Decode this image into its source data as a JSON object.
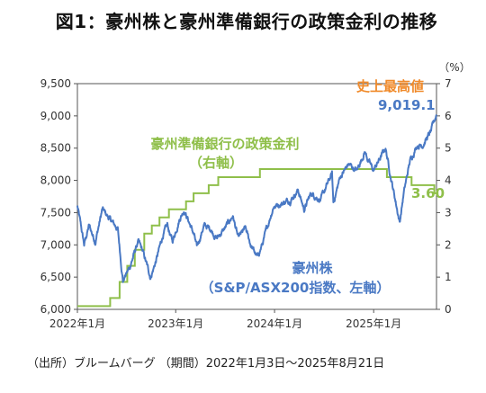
{
  "title": "図1：豪州株と豪州準備銀行の政策金利の推移",
  "source_note": "（出所）ブルームバーグ （期間）2022年1月3日〜2025年8月21日",
  "chart_data": {
    "type": "line",
    "title": "図1：豪州株と豪州準備銀行の政策金利の推移",
    "y_left": {
      "ylim": [
        6000,
        9500
      ],
      "ticks": [
        "6,000",
        "6,500",
        "7,000",
        "7,500",
        "8,000",
        "8,500",
        "9,000",
        "9,500"
      ],
      "tick_values": [
        6000,
        6500,
        7000,
        7500,
        8000,
        8500,
        9000,
        9500
      ]
    },
    "y_right": {
      "unit": "（%）",
      "ylim": [
        0,
        7
      ],
      "ticks": [
        "0",
        "1",
        "2",
        "3",
        "4",
        "5",
        "6",
        "7"
      ],
      "tick_values": [
        0,
        1,
        2,
        3,
        4,
        5,
        6,
        7
      ]
    },
    "x_ticks": [
      "2022年1月",
      "2023年1月",
      "2024年1月",
      "2025年1月"
    ],
    "x_range": [
      "2022-01-03",
      "2025-08-21"
    ],
    "colors": {
      "stock": "#4a79c4",
      "rate": "#8fbf4a",
      "record": "#f08a2a"
    },
    "labels": {
      "rate_label_1": "豪州準備銀行の政策金利",
      "rate_label_2": "（右軸）",
      "stock_label_1": "豪州株",
      "stock_label_2": "（S&P/ASX200指数、左軸）",
      "record_high": "史上最高値",
      "last_stock": "9,019.1",
      "last_rate": "3.60"
    },
    "series": [
      {
        "name": "豪州準備銀行の政策金利",
        "axis": "right",
        "points": [
          [
            "2022-01-03",
            0.1
          ],
          [
            "2022-05-04",
            0.35
          ],
          [
            "2022-06-08",
            0.85
          ],
          [
            "2022-07-06",
            1.35
          ],
          [
            "2022-08-03",
            1.85
          ],
          [
            "2022-09-07",
            2.35
          ],
          [
            "2022-10-05",
            2.6
          ],
          [
            "2022-11-02",
            2.85
          ],
          [
            "2022-12-07",
            3.1
          ],
          [
            "2023-02-08",
            3.35
          ],
          [
            "2023-03-08",
            3.6
          ],
          [
            "2023-05-03",
            3.85
          ],
          [
            "2023-06-07",
            4.1
          ],
          [
            "2023-11-08",
            4.35
          ],
          [
            "2025-02-19",
            4.1
          ],
          [
            "2025-05-21",
            3.85
          ],
          [
            "2025-08-13",
            3.6
          ],
          [
            "2025-08-21",
            3.6
          ]
        ]
      },
      {
        "name": "豪州株",
        "axis": "left",
        "points": [
          [
            "2022-01-03",
            7600
          ],
          [
            "2022-01-28",
            7000
          ],
          [
            "2022-02-15",
            7300
          ],
          [
            "2022-03-10",
            7050
          ],
          [
            "2022-04-05",
            7550
          ],
          [
            "2022-05-02",
            7400
          ],
          [
            "2022-06-01",
            7250
          ],
          [
            "2022-06-20",
            6450
          ],
          [
            "2022-07-15",
            6650
          ],
          [
            "2022-08-15",
            7050
          ],
          [
            "2022-09-01",
            6900
          ],
          [
            "2022-09-30",
            6500
          ],
          [
            "2022-10-20",
            6750
          ],
          [
            "2022-11-15",
            7150
          ],
          [
            "2022-12-01",
            7300
          ],
          [
            "2022-12-20",
            7050
          ],
          [
            "2023-01-15",
            7400
          ],
          [
            "2023-02-01",
            7550
          ],
          [
            "2023-03-10",
            7150
          ],
          [
            "2023-03-20",
            6950
          ],
          [
            "2023-04-15",
            7300
          ],
          [
            "2023-05-10",
            7250
          ],
          [
            "2023-06-01",
            7100
          ],
          [
            "2023-07-01",
            7250
          ],
          [
            "2023-07-31",
            7450
          ],
          [
            "2023-08-20",
            7100
          ],
          [
            "2023-09-15",
            7250
          ],
          [
            "2023-10-05",
            7000
          ],
          [
            "2023-10-30",
            6800
          ],
          [
            "2023-11-20",
            7050
          ],
          [
            "2023-12-28",
            7600
          ],
          [
            "2024-01-31",
            7650
          ],
          [
            "2024-02-28",
            7700
          ],
          [
            "2024-03-28",
            7850
          ],
          [
            "2024-04-19",
            7550
          ],
          [
            "2024-05-15",
            7800
          ],
          [
            "2024-06-20",
            7700
          ],
          [
            "2024-07-31",
            8100
          ],
          [
            "2024-08-05",
            7650
          ],
          [
            "2024-08-30",
            8050
          ],
          [
            "2024-09-30",
            8250
          ],
          [
            "2024-10-31",
            8150
          ],
          [
            "2024-11-29",
            8450
          ],
          [
            "2024-12-13",
            8300
          ],
          [
            "2024-12-31",
            8150
          ],
          [
            "2025-02-14",
            8500
          ],
          [
            "2025-03-10",
            7950
          ],
          [
            "2025-04-07",
            7350
          ],
          [
            "2025-04-22",
            7800
          ],
          [
            "2025-05-15",
            8300
          ],
          [
            "2025-06-10",
            8550
          ],
          [
            "2025-06-30",
            8550
          ],
          [
            "2025-07-31",
            8750
          ],
          [
            "2025-08-21",
            9019.1
          ]
        ]
      }
    ],
    "legend": "none",
    "grid": false
  }
}
